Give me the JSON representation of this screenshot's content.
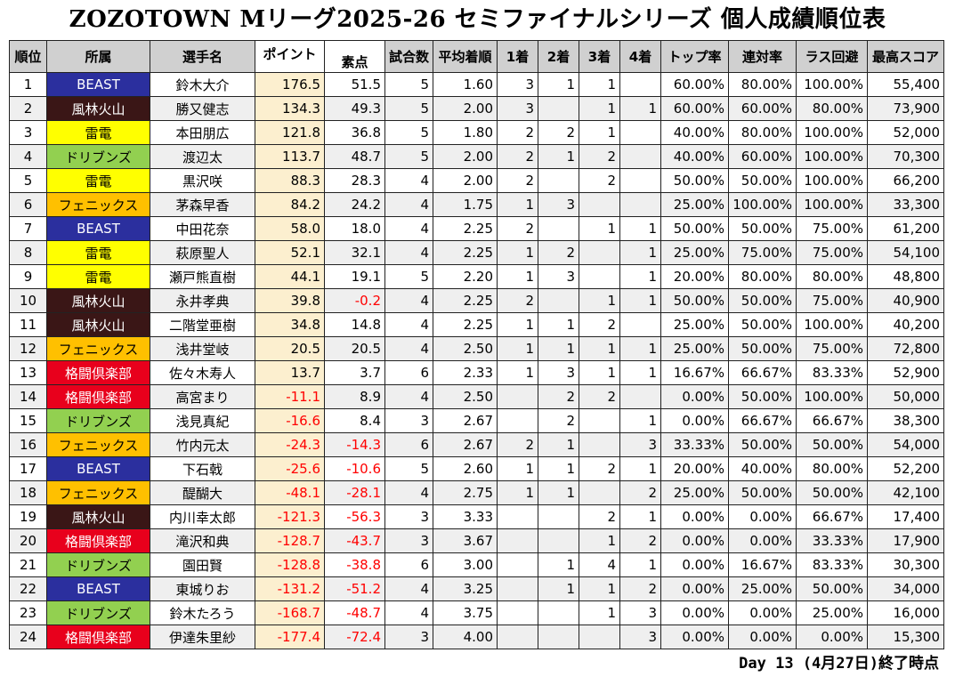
{
  "title": "ZOZOTOWN Mリーグ2025-26 セミファイナルシリーズ 個人成績順位表",
  "headers": [
    "順位",
    "所属",
    "選手名",
    "ポイント",
    "素点",
    "試合数",
    "平均着順",
    "1着",
    "2着",
    "3着",
    "4着",
    "トップ率",
    "連対率",
    "ラス回避",
    "最高スコア"
  ],
  "team_styles": {
    "BEAST": {
      "bg": "#2b2f9e",
      "fg": "#ffffff"
    },
    "風林火山": {
      "bg": "#3a1616",
      "fg": "#ffffff"
    },
    "雷電": {
      "bg": "#ffff00",
      "fg": "#000000"
    },
    "ドリブンズ": {
      "bg": "#92d050",
      "fg": "#000000"
    },
    "フェニックス": {
      "bg": "#ffc000",
      "fg": "#000000"
    },
    "格闘倶楽部": {
      "bg": "#e8001c",
      "fg": "#ffffff"
    }
  },
  "rows": [
    {
      "rank": "1",
      "team": "BEAST",
      "name": "鈴木大介",
      "pt": "176.5",
      "soten": "51.5",
      "games": "5",
      "avg": "1.60",
      "p1": "3",
      "p2": "1",
      "p3": "1",
      "p4": "",
      "top": "60.00%",
      "rentai": "80.00%",
      "las": "100.00%",
      "max": "55,400"
    },
    {
      "rank": "2",
      "team": "風林火山",
      "name": "勝又健志",
      "pt": "134.3",
      "soten": "49.3",
      "games": "5",
      "avg": "2.00",
      "p1": "3",
      "p2": "",
      "p3": "1",
      "p4": "1",
      "top": "60.00%",
      "rentai": "60.00%",
      "las": "80.00%",
      "max": "73,900"
    },
    {
      "rank": "3",
      "team": "雷電",
      "name": "本田朋広",
      "pt": "121.8",
      "soten": "36.8",
      "games": "5",
      "avg": "1.80",
      "p1": "2",
      "p2": "2",
      "p3": "1",
      "p4": "",
      "top": "40.00%",
      "rentai": "80.00%",
      "las": "100.00%",
      "max": "52,000"
    },
    {
      "rank": "4",
      "team": "ドリブンズ",
      "name": "渡辺太",
      "pt": "113.7",
      "soten": "48.7",
      "games": "5",
      "avg": "2.00",
      "p1": "2",
      "p2": "1",
      "p3": "2",
      "p4": "",
      "top": "40.00%",
      "rentai": "60.00%",
      "las": "100.00%",
      "max": "70,300"
    },
    {
      "rank": "5",
      "team": "雷電",
      "name": "黒沢咲",
      "pt": "88.3",
      "soten": "28.3",
      "games": "4",
      "avg": "2.00",
      "p1": "2",
      "p2": "",
      "p3": "2",
      "p4": "",
      "top": "50.00%",
      "rentai": "50.00%",
      "las": "100.00%",
      "max": "66,200"
    },
    {
      "rank": "6",
      "team": "フェニックス",
      "name": "茅森早香",
      "pt": "84.2",
      "soten": "24.2",
      "games": "4",
      "avg": "1.75",
      "p1": "1",
      "p2": "3",
      "p3": "",
      "p4": "",
      "top": "25.00%",
      "rentai": "100.00%",
      "las": "100.00%",
      "max": "33,300"
    },
    {
      "rank": "7",
      "team": "BEAST",
      "name": "中田花奈",
      "pt": "58.0",
      "soten": "18.0",
      "games": "4",
      "avg": "2.25",
      "p1": "2",
      "p2": "",
      "p3": "1",
      "p4": "1",
      "top": "50.00%",
      "rentai": "50.00%",
      "las": "75.00%",
      "max": "61,200"
    },
    {
      "rank": "8",
      "team": "雷電",
      "name": "萩原聖人",
      "pt": "52.1",
      "soten": "32.1",
      "games": "4",
      "avg": "2.25",
      "p1": "1",
      "p2": "2",
      "p3": "",
      "p4": "1",
      "top": "25.00%",
      "rentai": "75.00%",
      "las": "75.00%",
      "max": "54,100"
    },
    {
      "rank": "9",
      "team": "雷電",
      "name": "瀬戸熊直樹",
      "pt": "44.1",
      "soten": "19.1",
      "games": "5",
      "avg": "2.20",
      "p1": "1",
      "p2": "3",
      "p3": "",
      "p4": "1",
      "top": "20.00%",
      "rentai": "80.00%",
      "las": "80.00%",
      "max": "48,800"
    },
    {
      "rank": "10",
      "team": "風林火山",
      "name": "永井孝典",
      "pt": "39.8",
      "soten": "-0.2",
      "games": "4",
      "avg": "2.25",
      "p1": "2",
      "p2": "",
      "p3": "1",
      "p4": "1",
      "top": "50.00%",
      "rentai": "50.00%",
      "las": "75.00%",
      "max": "40,900"
    },
    {
      "rank": "11",
      "team": "風林火山",
      "name": "二階堂亜樹",
      "pt": "34.8",
      "soten": "14.8",
      "games": "4",
      "avg": "2.25",
      "p1": "1",
      "p2": "1",
      "p3": "2",
      "p4": "",
      "top": "25.00%",
      "rentai": "50.00%",
      "las": "100.00%",
      "max": "40,200"
    },
    {
      "rank": "12",
      "team": "フェニックス",
      "name": "浅井堂岐",
      "pt": "20.5",
      "soten": "20.5",
      "games": "4",
      "avg": "2.50",
      "p1": "1",
      "p2": "1",
      "p3": "1",
      "p4": "1",
      "top": "25.00%",
      "rentai": "50.00%",
      "las": "75.00%",
      "max": "72,800"
    },
    {
      "rank": "13",
      "team": "格闘倶楽部",
      "name": "佐々木寿人",
      "pt": "13.7",
      "soten": "3.7",
      "games": "6",
      "avg": "2.33",
      "p1": "1",
      "p2": "3",
      "p3": "1",
      "p4": "1",
      "top": "16.67%",
      "rentai": "66.67%",
      "las": "83.33%",
      "max": "52,900"
    },
    {
      "rank": "14",
      "team": "格闘倶楽部",
      "name": "高宮まり",
      "pt": "-11.1",
      "soten": "8.9",
      "games": "4",
      "avg": "2.50",
      "p1": "",
      "p2": "2",
      "p3": "2",
      "p4": "",
      "top": "0.00%",
      "rentai": "50.00%",
      "las": "100.00%",
      "max": "50,000"
    },
    {
      "rank": "15",
      "team": "ドリブンズ",
      "name": "浅見真紀",
      "pt": "-16.6",
      "soten": "8.4",
      "games": "3",
      "avg": "2.67",
      "p1": "",
      "p2": "2",
      "p3": "",
      "p4": "1",
      "top": "0.00%",
      "rentai": "66.67%",
      "las": "66.67%",
      "max": "38,300"
    },
    {
      "rank": "16",
      "team": "フェニックス",
      "name": "竹内元太",
      "pt": "-24.3",
      "soten": "-14.3",
      "games": "6",
      "avg": "2.67",
      "p1": "2",
      "p2": "1",
      "p3": "",
      "p4": "3",
      "top": "33.33%",
      "rentai": "50.00%",
      "las": "50.00%",
      "max": "54,000"
    },
    {
      "rank": "17",
      "team": "BEAST",
      "name": "下石戟",
      "pt": "-25.6",
      "soten": "-10.6",
      "games": "5",
      "avg": "2.60",
      "p1": "1",
      "p2": "1",
      "p3": "2",
      "p4": "1",
      "top": "20.00%",
      "rentai": "40.00%",
      "las": "80.00%",
      "max": "52,200"
    },
    {
      "rank": "18",
      "team": "フェニックス",
      "name": "醍醐大",
      "pt": "-48.1",
      "soten": "-28.1",
      "games": "4",
      "avg": "2.75",
      "p1": "1",
      "p2": "1",
      "p3": "",
      "p4": "2",
      "top": "25.00%",
      "rentai": "50.00%",
      "las": "50.00%",
      "max": "42,100"
    },
    {
      "rank": "19",
      "team": "風林火山",
      "name": "内川幸太郎",
      "pt": "-121.3",
      "soten": "-56.3",
      "games": "3",
      "avg": "3.33",
      "p1": "",
      "p2": "",
      "p3": "2",
      "p4": "1",
      "top": "0.00%",
      "rentai": "0.00%",
      "las": "66.67%",
      "max": "17,400"
    },
    {
      "rank": "20",
      "team": "格闘倶楽部",
      "name": "滝沢和典",
      "pt": "-128.7",
      "soten": "-43.7",
      "games": "3",
      "avg": "3.67",
      "p1": "",
      "p2": "",
      "p3": "1",
      "p4": "2",
      "top": "0.00%",
      "rentai": "0.00%",
      "las": "33.33%",
      "max": "17,900"
    },
    {
      "rank": "21",
      "team": "ドリブンズ",
      "name": "園田賢",
      "pt": "-128.8",
      "soten": "-38.8",
      "games": "6",
      "avg": "3.00",
      "p1": "",
      "p2": "1",
      "p3": "4",
      "p4": "1",
      "top": "0.00%",
      "rentai": "16.67%",
      "las": "83.33%",
      "max": "30,300"
    },
    {
      "rank": "22",
      "team": "BEAST",
      "name": "東城りお",
      "pt": "-131.2",
      "soten": "-51.2",
      "games": "4",
      "avg": "3.25",
      "p1": "",
      "p2": "1",
      "p3": "1",
      "p4": "2",
      "top": "0.00%",
      "rentai": "25.00%",
      "las": "50.00%",
      "max": "34,000"
    },
    {
      "rank": "23",
      "team": "ドリブンズ",
      "name": "鈴木たろう",
      "pt": "-168.7",
      "soten": "-48.7",
      "games": "4",
      "avg": "3.75",
      "p1": "",
      "p2": "",
      "p3": "1",
      "p4": "3",
      "top": "0.00%",
      "rentai": "0.00%",
      "las": "25.00%",
      "max": "16,000"
    },
    {
      "rank": "24",
      "team": "格闘倶楽部",
      "name": "伊達朱里紗",
      "pt": "-177.4",
      "soten": "-72.4",
      "games": "3",
      "avg": "4.00",
      "p1": "",
      "p2": "",
      "p3": "",
      "p4": "3",
      "top": "0.00%",
      "rentai": "0.00%",
      "las": "0.00%",
      "max": "15,300"
    }
  ],
  "footer": "Day 13 (4月27日)終了時点"
}
